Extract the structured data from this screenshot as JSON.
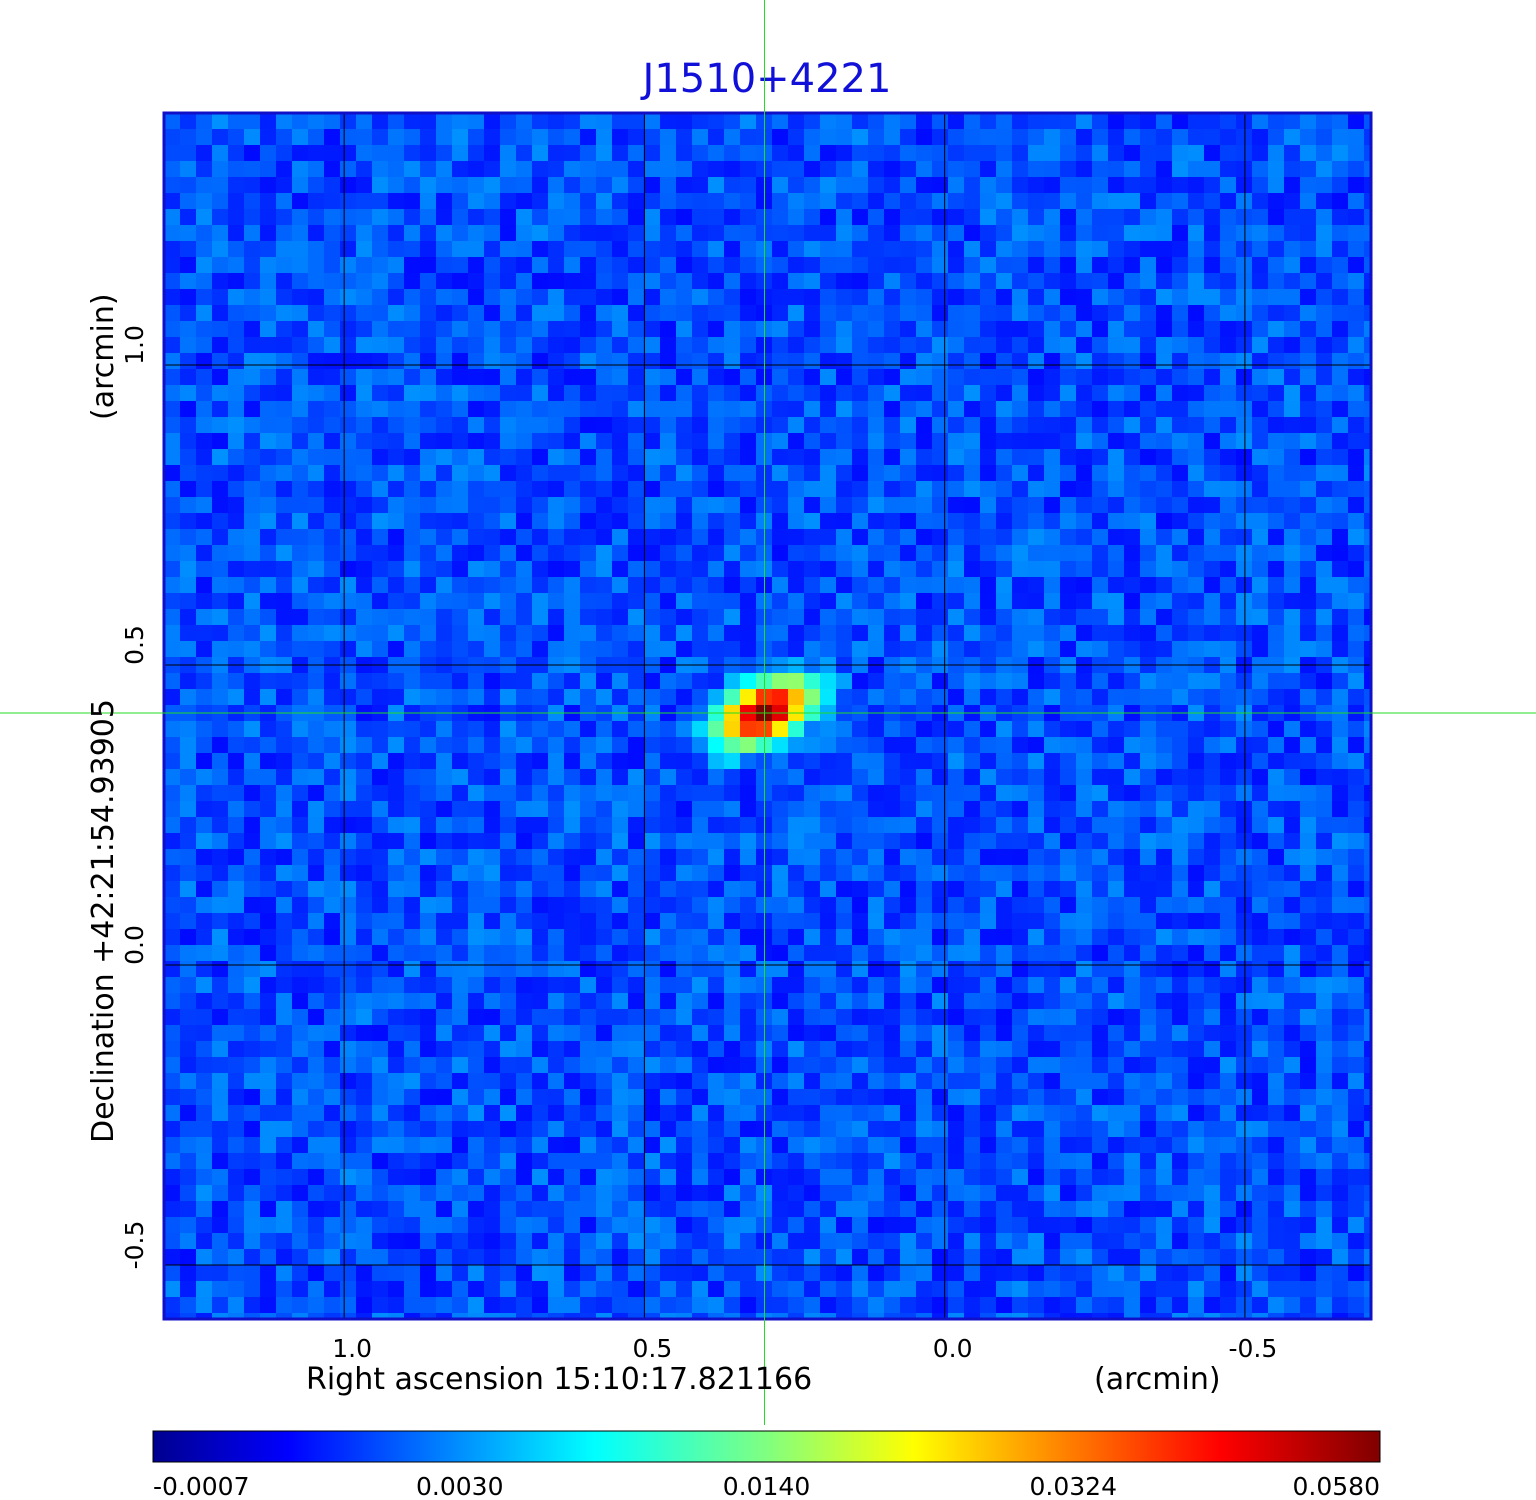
{
  "title": "J1510+4221",
  "chart_data": {
    "type": "heatmap",
    "title": "J1510+4221",
    "xlabel": "Right ascension  15:10:17.821166",
    "xunit": "(arcmin)",
    "ylabel": "Declination  +42:21:54.93905",
    "yunit": "(arcmin)",
    "xlim": [
      1.3,
      -0.71
    ],
    "ylim": [
      -0.59,
      1.42
    ],
    "x_ticks": [
      1.0,
      0.5,
      0.0,
      -0.5
    ],
    "x_tick_labels": [
      "1.0",
      "0.5",
      "0.0",
      "-0.5"
    ],
    "y_ticks": [
      1.0,
      0.5,
      0.0,
      -0.5
    ],
    "y_tick_labels": [
      "1.0",
      "0.5",
      "0.0",
      "-0.5"
    ],
    "grid": true,
    "crosshair": {
      "x": 0.3,
      "y": 0.42,
      "color": "#22dd22"
    },
    "source": {
      "x": 0.3,
      "y": 0.42,
      "peak": 0.058,
      "sigma_major_arcmin": 0.045,
      "sigma_minor_arcmin": 0.025,
      "position_angle_deg": -25
    },
    "background_level": 0.0008,
    "colorbar": {
      "min": -0.0007,
      "max": 0.058,
      "tick_values": [
        -0.0007,
        0.003,
        0.014,
        0.0324,
        0.058
      ],
      "tick_labels": [
        "-0.0007",
        "0.0030",
        "0.0140",
        "0.0324",
        "0.0580"
      ],
      "colormap": "jet"
    }
  }
}
